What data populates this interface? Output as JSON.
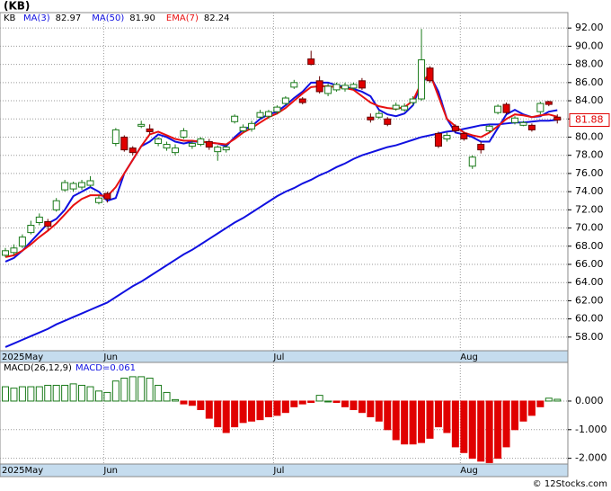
{
  "chart_data": [
    {
      "type": "candlestick",
      "title": "(KB)",
      "symbol": "KB",
      "categories": [
        "2025May",
        null,
        null,
        null,
        null,
        null,
        null,
        null,
        null,
        null,
        null,
        null,
        "Jun",
        null,
        null,
        null,
        null,
        null,
        null,
        null,
        null,
        null,
        null,
        null,
        null,
        null,
        null,
        null,
        null,
        null,
        null,
        null,
        "Jul",
        null,
        null,
        null,
        null,
        null,
        null,
        null,
        null,
        null,
        null,
        null,
        null,
        null,
        null,
        null,
        null,
        null,
        null,
        null,
        null,
        null,
        "Aug",
        null,
        null,
        null,
        null,
        null,
        null,
        null,
        null,
        null,
        null,
        null
      ],
      "open": [
        67,
        67.3,
        68,
        69.5,
        70.6,
        70.7,
        72,
        74.2,
        74.3,
        74.5,
        74.7,
        72.8,
        73.8,
        79.3,
        80,
        78.8,
        81.2,
        80.9,
        79.3,
        78.8,
        78.3,
        80,
        79,
        79.2,
        79.5,
        78.4,
        78.6,
        81.7,
        80.7,
        80.9,
        82.2,
        82.3,
        82.8,
        83.7,
        85.5,
        84.2,
        88.6,
        86.2,
        84.8,
        85.2,
        85.3,
        85.4,
        86.2,
        82.2,
        82.2,
        82,
        83.1,
        83,
        83.8,
        84.2,
        87.6,
        80.4,
        79.8,
        81.2,
        80.4,
        76.8,
        79.2,
        80.7,
        82.7,
        83.6,
        81.6,
        81.3,
        81.3,
        82.8,
        83.9,
        82.2
      ],
      "high": [
        67.8,
        68.2,
        69.3,
        70.8,
        71.6,
        71,
        73.3,
        75.3,
        75.1,
        75.3,
        75.7,
        73.6,
        74,
        81,
        80.2,
        79,
        81.8,
        81.4,
        80,
        79.5,
        79.2,
        81,
        79.6,
        80,
        79.8,
        79.1,
        79.2,
        82.5,
        81.4,
        81.8,
        83,
        83,
        83.5,
        84.5,
        86.3,
        84.4,
        89.5,
        86.7,
        85.9,
        86,
        86,
        86,
        86.5,
        82.6,
        82.9,
        82.2,
        83.8,
        83.7,
        84.5,
        91.9,
        87.8,
        80.6,
        80.5,
        81.4,
        80.6,
        78,
        79.5,
        81.4,
        83.6,
        83.8,
        82.3,
        81.8,
        81.5,
        83.9,
        84,
        82.5
      ],
      "low": [
        66.8,
        67,
        67.8,
        69.3,
        70.3,
        69.8,
        71.8,
        74,
        74,
        74.2,
        74.5,
        72.6,
        72.8,
        79,
        78.4,
        78,
        81,
        80.3,
        79,
        78.5,
        78,
        79.8,
        78.7,
        79,
        78.6,
        77.4,
        78.3,
        81.5,
        80.5,
        80.6,
        82,
        82,
        82.5,
        83.5,
        85.3,
        83.6,
        87.9,
        84.8,
        84.5,
        85,
        85,
        85.2,
        85.2,
        81.6,
        82,
        81.2,
        82.9,
        82.8,
        83.5,
        84,
        86,
        78.8,
        79.5,
        80.5,
        79.6,
        76.5,
        78.2,
        80.5,
        82.5,
        82.5,
        81.4,
        81.2,
        80.6,
        82.5,
        83.4,
        81.5
      ],
      "close": [
        67.5,
        67.8,
        69,
        70.3,
        71.2,
        70.2,
        73,
        75,
        74.9,
        75,
        75.2,
        73.3,
        73.2,
        80.8,
        78.6,
        78.3,
        81.4,
        80.6,
        79.8,
        79.2,
        78.8,
        80.7,
        79.3,
        79.8,
        78.9,
        78.9,
        78.9,
        82.3,
        81.1,
        81.5,
        82.7,
        82.8,
        83.3,
        84.3,
        86,
        83.8,
        88,
        85,
        85.6,
        85.8,
        85.7,
        85.8,
        85.4,
        81.9,
        82.6,
        81.4,
        83.5,
        83.4,
        84.2,
        88.5,
        86.2,
        79,
        80.2,
        80.7,
        79.8,
        77.8,
        78.6,
        81.2,
        83.4,
        82.7,
        82.1,
        81.6,
        80.8,
        83.7,
        83.6,
        81.88
      ],
      "up_color": "#1a7a1a",
      "down_color": "#e00000",
      "series": [
        {
          "name": "MA(3)",
          "legend_value": "82.97",
          "color": "#1010e0",
          "values": [
            66.3,
            66.7,
            67.5,
            68.5,
            69.5,
            70.5,
            71,
            72,
            73.5,
            74,
            74.5,
            74,
            73,
            73.3,
            76,
            77.5,
            79,
            79.5,
            80.3,
            80,
            79.5,
            79.3,
            79.5,
            79.5,
            79.4,
            79.3,
            79,
            80,
            80.8,
            81.2,
            82,
            82.5,
            82.8,
            83.5,
            84.3,
            85,
            86,
            86,
            86,
            85.7,
            85.5,
            85.3,
            85,
            84.5,
            83,
            82.5,
            82.3,
            82.6,
            83.5,
            86,
            86.8,
            85,
            82,
            80.5,
            80.3,
            80,
            79.5,
            79.5,
            81,
            82.5,
            83,
            82.5,
            82.2,
            82.3,
            82.8,
            82.97
          ]
        },
        {
          "name": "MA(50)",
          "legend_value": "81.90",
          "color": "#1010e0",
          "values": [
            56.9,
            57.3,
            57.7,
            58.1,
            58.5,
            58.9,
            59.4,
            59.8,
            60.2,
            60.6,
            61.0,
            61.4,
            61.8,
            62.4,
            63.0,
            63.6,
            64.1,
            64.7,
            65.3,
            65.9,
            66.5,
            67.1,
            67.6,
            68.2,
            68.8,
            69.4,
            70.0,
            70.6,
            71.1,
            71.7,
            72.3,
            72.9,
            73.5,
            74.0,
            74.4,
            74.9,
            75.3,
            75.8,
            76.2,
            76.7,
            77.1,
            77.6,
            78.0,
            78.3,
            78.6,
            78.9,
            79.1,
            79.4,
            79.7,
            80.0,
            80.2,
            80.4,
            80.6,
            80.7,
            80.9,
            81.1,
            81.3,
            81.4,
            81.4,
            81.5,
            81.6,
            81.6,
            81.7,
            81.8,
            81.8,
            81.9
          ]
        },
        {
          "name": "EMA(7)",
          "legend_value": "82.24",
          "color": "#e81010",
          "values": [
            66.8,
            67,
            67.5,
            68.2,
            69,
            69.7,
            70.5,
            71.5,
            72.5,
            73.2,
            73.6,
            73.6,
            73.5,
            74.5,
            76,
            77.5,
            79,
            80.3,
            80.6,
            80.2,
            79.8,
            79.6,
            79.6,
            79.5,
            79.4,
            79.3,
            79.2,
            79.8,
            80.5,
            81,
            81.6,
            82.2,
            82.6,
            83.2,
            84,
            84.8,
            85.5,
            85.6,
            85.6,
            85.5,
            85.4,
            85.2,
            84.5,
            83.8,
            83.4,
            83.2,
            83.1,
            83.3,
            84,
            86,
            87,
            84.5,
            82,
            81.2,
            80.5,
            80.2,
            80,
            80.5,
            81.2,
            82,
            82.5,
            82.4,
            82.2,
            82.4,
            82.5,
            82.24
          ]
        }
      ],
      "last_price": 81.88,
      "ylim": [
        56.5,
        93.7
      ],
      "yticks": [
        {
          "value": 58,
          "label": "58.00"
        },
        {
          "value": 60,
          "label": "60.00"
        },
        {
          "value": 62,
          "label": "62.00"
        },
        {
          "value": 64,
          "label": "64.00"
        },
        {
          "value": 66,
          "label": "66.00"
        },
        {
          "value": 68,
          "label": "68.00"
        },
        {
          "value": 70,
          "label": "70.00"
        },
        {
          "value": 72,
          "label": "72.00"
        },
        {
          "value": 74,
          "label": "74.00"
        },
        {
          "value": 76,
          "label": "76.00"
        },
        {
          "value": 78,
          "label": "78.00"
        },
        {
          "value": 80,
          "label": "80.00"
        },
        {
          "value": 82,
          "label": "82.00"
        },
        {
          "value": 84,
          "label": "84.00"
        },
        {
          "value": 86,
          "label": "86.00"
        },
        {
          "value": 88,
          "label": "88.00"
        },
        {
          "value": 90,
          "label": "90.00"
        },
        {
          "value": 92,
          "label": "92.00"
        }
      ],
      "grid": true
    },
    {
      "type": "bar",
      "title": "MACD(26,12,9)",
      "label": "MACD=0.061",
      "categories": [
        "2025May",
        null,
        null,
        null,
        null,
        null,
        null,
        null,
        null,
        null,
        null,
        null,
        "Jun",
        null,
        null,
        null,
        null,
        null,
        null,
        null,
        null,
        null,
        null,
        null,
        null,
        null,
        null,
        null,
        null,
        null,
        null,
        null,
        "Jul",
        null,
        null,
        null,
        null,
        null,
        null,
        null,
        null,
        null,
        null,
        null,
        null,
        null,
        null,
        null,
        null,
        null,
        null,
        null,
        null,
        null,
        "Aug",
        null,
        null,
        null,
        null,
        null,
        null,
        null,
        null,
        null,
        null,
        null
      ],
      "values": [
        0.5,
        0.45,
        0.5,
        0.5,
        0.5,
        0.55,
        0.55,
        0.55,
        0.6,
        0.55,
        0.5,
        0.35,
        0.3,
        0.7,
        0.8,
        0.85,
        0.85,
        0.8,
        0.55,
        0.3,
        0.05,
        -0.1,
        -0.15,
        -0.3,
        -0.6,
        -0.9,
        -1.1,
        -0.9,
        -0.75,
        -0.7,
        -0.65,
        -0.55,
        -0.5,
        -0.4,
        -0.2,
        -0.1,
        -0.05,
        0.2,
        0,
        -0.05,
        -0.2,
        -0.3,
        -0.4,
        -0.55,
        -0.7,
        -1.0,
        -1.35,
        -1.5,
        -1.5,
        -1.45,
        -1.3,
        -0.9,
        -1.1,
        -1.6,
        -1.8,
        -2.0,
        -2.1,
        -2.15,
        -2.0,
        -1.6,
        -1.0,
        -0.7,
        -0.5,
        -0.2,
        0.1,
        0.061
      ],
      "pos_color": "#1a7a1a",
      "neg_color": "#e00000",
      "ylim": [
        -2.2,
        1.35
      ],
      "yticks": [
        {
          "value": 0,
          "label": "0.000"
        },
        {
          "value": -1,
          "label": "-1.000"
        },
        {
          "value": -2,
          "label": "-2.000"
        }
      ],
      "grid": true
    }
  ],
  "footer": "© 12Stocks.com"
}
